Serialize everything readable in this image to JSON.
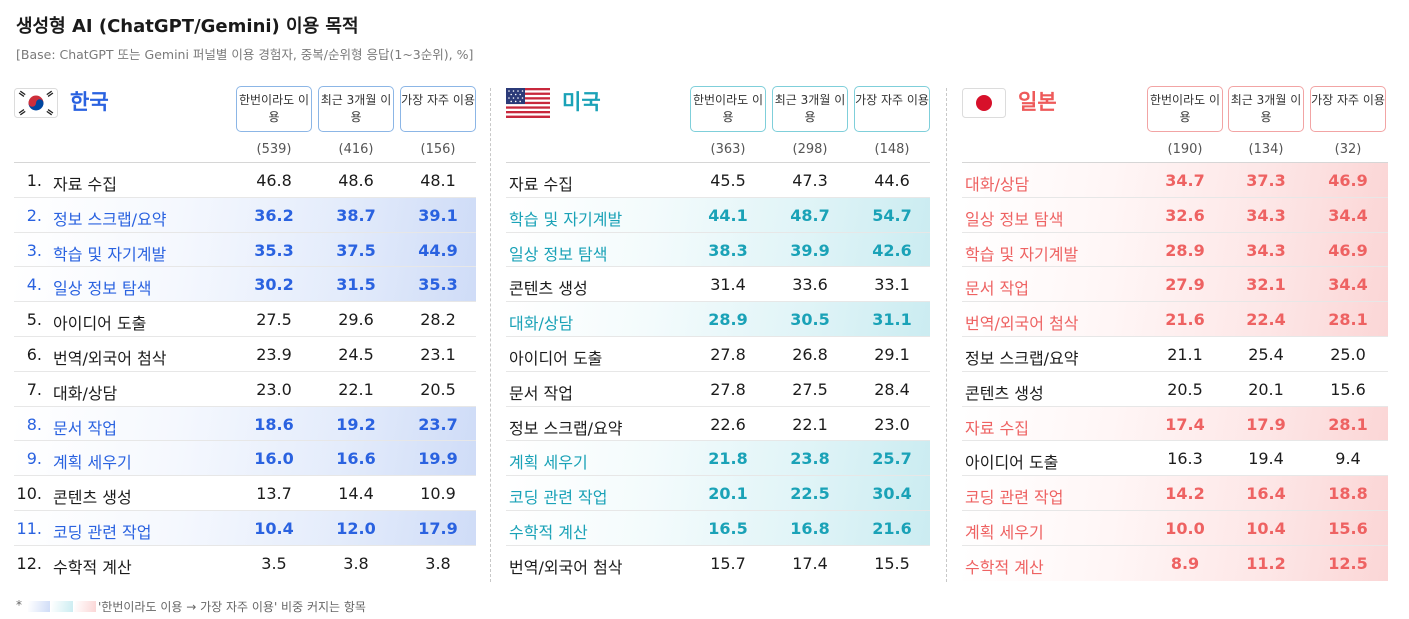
{
  "title": "생성형 AI (ChatGPT/Gemini) 이용 목적",
  "subtitle": "[Base: ChatGPT 또는 Gemini 퍼널별 이용 경험자, 중복/순위형 응답(1~3순위), %]",
  "columns": [
    "한번이라도 이용",
    "최근 3개월 이용",
    "가장 자주 이용"
  ],
  "colors": {
    "korea": "#2a62e0",
    "usa": "#1aa2b7",
    "japan": "#ee5a5a"
  },
  "footnote": {
    "star": "*",
    "text": "'한번이라도 이용 → 가장 자주 이용' 비중 커지는 항목"
  },
  "chart_data": [
    {
      "type": "table",
      "country": "한국",
      "flag_icon": "korea-flag-icon",
      "bases": [
        "(539)",
        "(416)",
        "(156)"
      ],
      "rows": [
        {
          "rank": "1.",
          "label": "자료 수집",
          "values": [
            "46.8",
            "48.6",
            "48.1"
          ],
          "highlight": false
        },
        {
          "rank": "2.",
          "label": "정보 스크랩/요약",
          "values": [
            "36.2",
            "38.7",
            "39.1"
          ],
          "highlight": true
        },
        {
          "rank": "3.",
          "label": "학습 및 자기계발",
          "values": [
            "35.3",
            "37.5",
            "44.9"
          ],
          "highlight": true
        },
        {
          "rank": "4.",
          "label": "일상 정보 탐색",
          "values": [
            "30.2",
            "31.5",
            "35.3"
          ],
          "highlight": true
        },
        {
          "rank": "5.",
          "label": "아이디어 도출",
          "values": [
            "27.5",
            "29.6",
            "28.2"
          ],
          "highlight": false
        },
        {
          "rank": "6.",
          "label": "번역/외국어 첨삭",
          "values": [
            "23.9",
            "24.5",
            "23.1"
          ],
          "highlight": false
        },
        {
          "rank": "7.",
          "label": "대화/상담",
          "values": [
            "23.0",
            "22.1",
            "20.5"
          ],
          "highlight": false
        },
        {
          "rank": "8.",
          "label": "문서 작업",
          "values": [
            "18.6",
            "19.2",
            "23.7"
          ],
          "highlight": true
        },
        {
          "rank": "9.",
          "label": "계획 세우기",
          "values": [
            "16.0",
            "16.6",
            "19.9"
          ],
          "highlight": true
        },
        {
          "rank": "10.",
          "label": "콘텐츠 생성",
          "values": [
            "13.7",
            "14.4",
            "10.9"
          ],
          "highlight": false
        },
        {
          "rank": "11.",
          "label": "코딩 관련 작업",
          "values": [
            "10.4",
            "12.0",
            "17.9"
          ],
          "highlight": true
        },
        {
          "rank": "12.",
          "label": "수학적 계산",
          "values": [
            "3.5",
            "3.8",
            "3.8"
          ],
          "highlight": false
        }
      ]
    },
    {
      "type": "table",
      "country": "미국",
      "flag_icon": "usa-flag-icon",
      "bases": [
        "(363)",
        "(298)",
        "(148)"
      ],
      "rows": [
        {
          "label": "자료 수집",
          "values": [
            "45.5",
            "47.3",
            "44.6"
          ],
          "highlight": false
        },
        {
          "label": "학습 및 자기계발",
          "values": [
            "44.1",
            "48.7",
            "54.7"
          ],
          "highlight": true
        },
        {
          "label": "일상 정보 탐색",
          "values": [
            "38.3",
            "39.9",
            "42.6"
          ],
          "highlight": true
        },
        {
          "label": "콘텐츠 생성",
          "values": [
            "31.4",
            "33.6",
            "33.1"
          ],
          "highlight": false
        },
        {
          "label": "대화/상담",
          "values": [
            "28.9",
            "30.5",
            "31.1"
          ],
          "highlight": true
        },
        {
          "label": "아이디어 도출",
          "values": [
            "27.8",
            "26.8",
            "29.1"
          ],
          "highlight": false
        },
        {
          "label": "문서 작업",
          "values": [
            "27.8",
            "27.5",
            "28.4"
          ],
          "highlight": false
        },
        {
          "label": "정보 스크랩/요약",
          "values": [
            "22.6",
            "22.1",
            "23.0"
          ],
          "highlight": false
        },
        {
          "label": "계획 세우기",
          "values": [
            "21.8",
            "23.8",
            "25.7"
          ],
          "highlight": true
        },
        {
          "label": "코딩 관련 작업",
          "values": [
            "20.1",
            "22.5",
            "30.4"
          ],
          "highlight": true
        },
        {
          "label": "수학적 계산",
          "values": [
            "16.5",
            "16.8",
            "21.6"
          ],
          "highlight": true
        },
        {
          "label": "번역/외국어 첨삭",
          "values": [
            "15.7",
            "17.4",
            "15.5"
          ],
          "highlight": false
        }
      ]
    },
    {
      "type": "table",
      "country": "일본",
      "flag_icon": "japan-flag-icon",
      "bases": [
        "(190)",
        "(134)",
        "(32)"
      ],
      "rows": [
        {
          "label": "대화/상담",
          "values": [
            "34.7",
            "37.3",
            "46.9"
          ],
          "highlight": true
        },
        {
          "label": "일상 정보 탐색",
          "values": [
            "32.6",
            "34.3",
            "34.4"
          ],
          "highlight": true
        },
        {
          "label": "학습 및 자기계발",
          "values": [
            "28.9",
            "34.3",
            "46.9"
          ],
          "highlight": true
        },
        {
          "label": "문서 작업",
          "values": [
            "27.9",
            "32.1",
            "34.4"
          ],
          "highlight": true
        },
        {
          "label": "번역/외국어 첨삭",
          "values": [
            "21.6",
            "22.4",
            "28.1"
          ],
          "highlight": true
        },
        {
          "label": "정보 스크랩/요약",
          "values": [
            "21.1",
            "25.4",
            "25.0"
          ],
          "highlight": false
        },
        {
          "label": "콘텐츠 생성",
          "values": [
            "20.5",
            "20.1",
            "15.6"
          ],
          "highlight": false
        },
        {
          "label": "자료 수집",
          "values": [
            "17.4",
            "17.9",
            "28.1"
          ],
          "highlight": true
        },
        {
          "label": "아이디어 도출",
          "values": [
            "16.3",
            "19.4",
            "9.4"
          ],
          "highlight": false
        },
        {
          "label": "코딩 관련 작업",
          "values": [
            "14.2",
            "16.4",
            "18.8"
          ],
          "highlight": true
        },
        {
          "label": "계획 세우기",
          "values": [
            "10.0",
            "10.4",
            "15.6"
          ],
          "highlight": true
        },
        {
          "label": "수학적 계산",
          "values": [
            "8.9",
            "11.2",
            "12.5"
          ],
          "highlight": true
        }
      ]
    }
  ]
}
